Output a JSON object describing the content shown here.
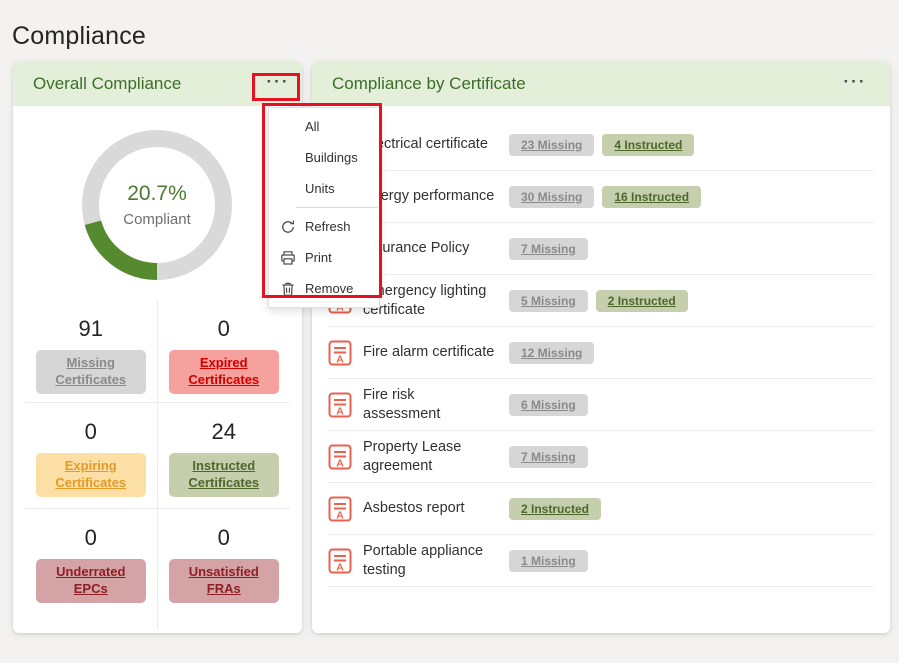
{
  "page": {
    "title": "Compliance",
    "background": "#f3f2f1"
  },
  "palette": {
    "header_bg": "#e3efd9",
    "header_fg": "#3d6d28",
    "annotation": "#e81123",
    "donut_track": "#d9d9d9",
    "donut_arc": "#568a2e",
    "cert_icon": "#e8624d",
    "badges": {
      "missing": {
        "bg": "#d6d6d6",
        "fg": "#8a8a8a"
      },
      "instructed": {
        "bg": "#c5cfad",
        "fg": "#4e672a"
      },
      "expired": {
        "bg": "#f5a19d",
        "fg": "#d10000"
      },
      "expiring": {
        "bg": "#fcdfa4",
        "fg": "#e59a28"
      },
      "alert": {
        "bg": "#d4a3a6",
        "fg": "#8d2026"
      }
    }
  },
  "overall_card": {
    "title": "Overall Compliance",
    "more_label": "···",
    "donut": {
      "percent": 20.7,
      "percent_label": "20.7%",
      "sublabel": "Compliant"
    },
    "stats": [
      {
        "value": "91",
        "label": "Missing Certificates",
        "type": "missing"
      },
      {
        "value": "0",
        "label": "Expired Certificates",
        "type": "expired"
      },
      {
        "value": "0",
        "label": "Expiring Certificates",
        "type": "expiring"
      },
      {
        "value": "24",
        "label": "Instructed Certificates",
        "type": "instructed"
      },
      {
        "value": "0",
        "label": "Underrated EPCs",
        "type": "alert"
      },
      {
        "value": "0",
        "label": "Unsatisfied FRAs",
        "type": "alert"
      }
    ]
  },
  "context_menu": {
    "groups": [
      {
        "items": [
          {
            "label": "All"
          },
          {
            "label": "Buildings"
          },
          {
            "label": "Units"
          }
        ]
      },
      {
        "items": [
          {
            "label": "Refresh",
            "icon": "refresh-icon"
          },
          {
            "label": "Print",
            "icon": "print-icon"
          },
          {
            "label": "Remove",
            "icon": "trash-icon"
          }
        ]
      }
    ]
  },
  "certificate_card": {
    "title": "Compliance by Certificate",
    "more_label": "···",
    "rows": [
      {
        "name": "Electrical certificate",
        "badges": [
          {
            "text": "23 Missing",
            "type": "missing"
          },
          {
            "text": "4 Instructed",
            "type": "instructed"
          }
        ]
      },
      {
        "name": "Energy performance",
        "badges": [
          {
            "text": "30 Missing",
            "type": "missing"
          },
          {
            "text": "16 Instructed",
            "type": "instructed"
          }
        ]
      },
      {
        "name": "Insurance Policy",
        "badges": [
          {
            "text": "7 Missing",
            "type": "missing"
          }
        ]
      },
      {
        "name": "Emergency lighting certificate",
        "badges": [
          {
            "text": "5 Missing",
            "type": "missing"
          },
          {
            "text": "2 Instructed",
            "type": "instructed"
          }
        ]
      },
      {
        "name": "Fire alarm certificate",
        "badges": [
          {
            "text": "12 Missing",
            "type": "missing"
          }
        ]
      },
      {
        "name": "Fire risk assessment",
        "badges": [
          {
            "text": "6 Missing",
            "type": "missing"
          }
        ]
      },
      {
        "name": "Property Lease agreement",
        "badges": [
          {
            "text": "7 Missing",
            "type": "missing"
          }
        ]
      },
      {
        "name": "Asbestos report",
        "badges": [
          {
            "text": "2 Instructed",
            "type": "instructed"
          }
        ]
      },
      {
        "name": "Portable appliance testing",
        "badges": [
          {
            "text": "1 Missing",
            "type": "missing"
          }
        ]
      }
    ]
  }
}
